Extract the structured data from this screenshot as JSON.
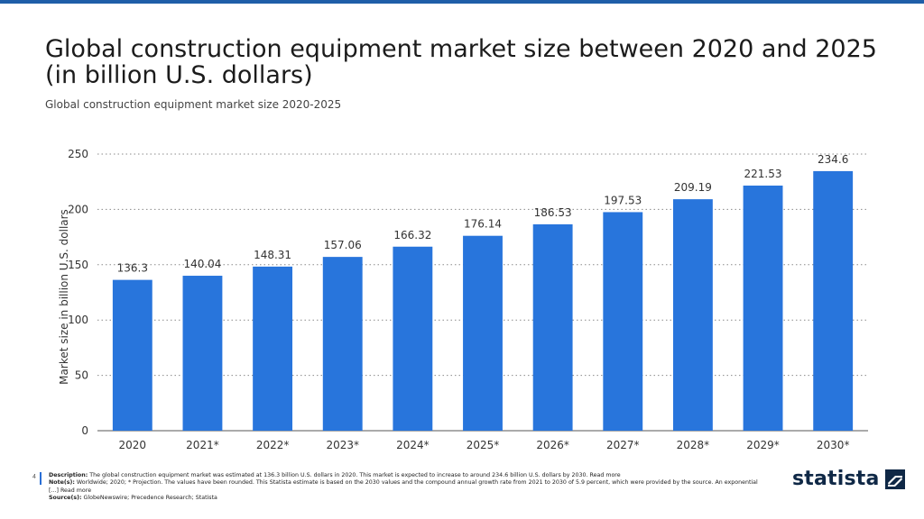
{
  "header": {
    "title": "Global construction equipment market size between 2020 and 2025 (in billion U.S. dollars)",
    "subtitle": "Global construction equipment market size 2020-2025"
  },
  "chart_data": {
    "type": "bar",
    "categories": [
      "2020",
      "2021*",
      "2022*",
      "2023*",
      "2024*",
      "2025*",
      "2026*",
      "2027*",
      "2028*",
      "2029*",
      "2030*"
    ],
    "values": [
      136.3,
      140.04,
      148.31,
      157.06,
      166.32,
      176.14,
      186.53,
      197.53,
      209.19,
      221.53,
      234.6
    ],
    "value_labels": [
      "136.3",
      "140.04",
      "148.31",
      "157.06",
      "166.32",
      "176.14",
      "186.53",
      "197.53",
      "209.19",
      "221.53",
      "234.6"
    ],
    "ylabel": "Market size in billion U.S. dollars",
    "ylim": [
      0,
      250
    ],
    "yticks": [
      0,
      50,
      100,
      150,
      200,
      250
    ],
    "grid": true,
    "bar_color": "#2875dc"
  },
  "footer": {
    "page_number": "4",
    "description_label": "Description:",
    "description_text": "The global construction equipment market was estimated at 136.3 billion U.S. dollars in 2020. This market is expected to increase to around 234.6 billion U.S. dollars by 2030.",
    "read_more_1": "Read more",
    "notes_label": "Note(s):",
    "notes_text": "Worldwide; 2020; * Projection. The values have been rounded.  This Statista estimate is based on the 2030 values and the compound annual growth rate from 2021 to 2030 of 5.9 percent, which were provided by the source. An exponential [...]",
    "read_more_2": "Read more",
    "sources_label": "Source(s):",
    "sources_text": "GlobeNewswire; Precedence Research; Statista"
  },
  "brand": {
    "logo_text": "statista",
    "logo_icon": "statista-logo-icon"
  }
}
